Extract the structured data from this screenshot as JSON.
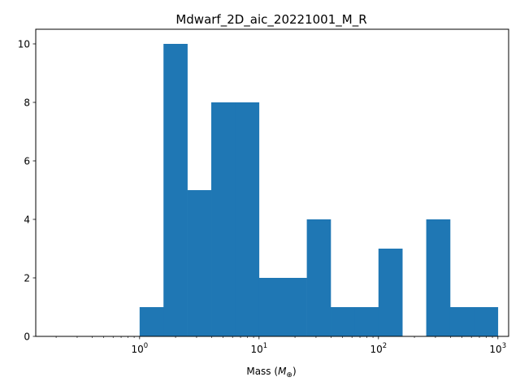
{
  "chart_data": {
    "type": "bar",
    "title": "Mdwarf_2D_aic_20221001_M_R",
    "xlabel": "Mass ($M_{\\oplus}$)",
    "xlabel_main": "Mass (",
    "xlabel_symbol": "M",
    "xlabel_subscript": "⊕",
    "xlabel_close": ")",
    "ylabel": "",
    "xscale": "log",
    "xlim": [
      0.135,
      1230
    ],
    "ylim": [
      0,
      10.5
    ],
    "color": "#1f77b4",
    "bin_edges": [
      1.0,
      1.5849,
      2.5119,
      3.9811,
      6.3096,
      10.0,
      15.849,
      25.119,
      39.811,
      63.096,
      100.0,
      158.49,
      251.19,
      398.11,
      630.96,
      1000.0
    ],
    "counts": [
      1,
      10,
      5,
      8,
      8,
      2,
      2,
      4,
      1,
      1,
      3,
      0,
      4,
      1,
      1
    ],
    "x_major_ticks": [
      {
        "value": 1,
        "base": "10",
        "exp": "0"
      },
      {
        "value": 10,
        "base": "10",
        "exp": "1"
      },
      {
        "value": 100,
        "base": "10",
        "exp": "2"
      },
      {
        "value": 1000,
        "base": "10",
        "exp": "3"
      }
    ],
    "y_ticks": [
      0,
      2,
      4,
      6,
      8,
      10
    ]
  }
}
